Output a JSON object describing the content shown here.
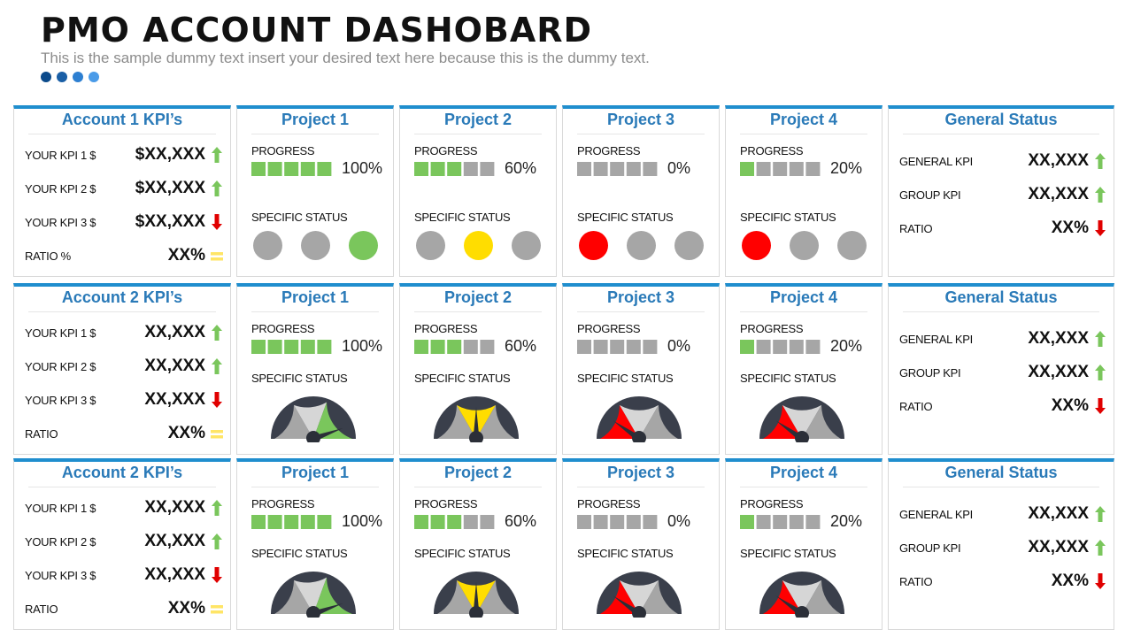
{
  "header": {
    "title": "PMO ACCOUNT DASHOBARD",
    "subtitle": "This is the sample dummy text insert your desired text here because this is the dummy text.",
    "dot_colors": [
      "#0b4a8b",
      "#1a5fa6",
      "#2d7fd1",
      "#4a9be8"
    ]
  },
  "colors": {
    "accent": "#1f8ece",
    "title": "#2a7ab8",
    "green": "#7ac65c",
    "grey": "#a6a6a6",
    "yellow": "#ffdd00",
    "red": "#ff0000",
    "arrow_up": "#7ac65c",
    "arrow_down": "#e00000",
    "equal": "#ffe566"
  },
  "rows": [
    {
      "account": {
        "title": "Account 1 KPI’s",
        "items": [
          {
            "label": "YOUR KPI 1 $",
            "value": "$XX,XXX",
            "trend": "up"
          },
          {
            "label": "YOUR KPI 2 $",
            "value": "$XX,XXX",
            "trend": "up"
          },
          {
            "label": "YOUR KPI 3 $",
            "value": "$XX,XXX",
            "trend": "down"
          },
          {
            "label": "RATIO %",
            "value": "XX%",
            "trend": "equal"
          }
        ]
      },
      "status_type": "circles",
      "projects": [
        {
          "title": "Project 1",
          "progress_label": "PROGRESS",
          "progress": 100,
          "progress_text": "100%",
          "status_label": "SPECIFIC STATUS",
          "circles": [
            "grey",
            "grey",
            "green"
          ]
        },
        {
          "title": "Project 2",
          "progress_label": "PROGRESS",
          "progress": 60,
          "progress_text": "60%",
          "status_label": "SPECIFIC STATUS",
          "circles": [
            "grey",
            "yellow",
            "grey"
          ]
        },
        {
          "title": "Project 3",
          "progress_label": "PROGRESS",
          "progress": 0,
          "progress_text": "0%",
          "status_label": "SPECIFIC STATUS",
          "circles": [
            "red",
            "grey",
            "grey"
          ]
        },
        {
          "title": "Project 4",
          "progress_label": "PROGRESS",
          "progress": 20,
          "progress_text": "20%",
          "status_label": "SPECIFIC STATUS",
          "circles": [
            "red",
            "grey",
            "grey"
          ]
        }
      ],
      "general": {
        "title": "General Status",
        "items": [
          {
            "label": "GENERAL KPI",
            "value": "XX,XXX",
            "trend": "up"
          },
          {
            "label": "GROUP KPI",
            "value": "XX,XXX",
            "trend": "up"
          },
          {
            "label": "RATIO",
            "value": "XX%",
            "trend": "down"
          }
        ]
      }
    },
    {
      "account": {
        "title": "Account 2 KPI’s",
        "items": [
          {
            "label": "YOUR KPI 1 $",
            "value": "XX,XXX",
            "trend": "up"
          },
          {
            "label": "YOUR KPI 2 $",
            "value": "XX,XXX",
            "trend": "up"
          },
          {
            "label": "YOUR KPI 3 $",
            "value": "XX,XXX",
            "trend": "down"
          },
          {
            "label": "RATIO",
            "value": "XX%",
            "trend": "equal"
          }
        ]
      },
      "status_type": "gauge",
      "projects": [
        {
          "title": "Project 1",
          "progress_label": "PROGRESS",
          "progress": 100,
          "progress_text": "100%",
          "status_label": "SPECIFIC STATUS",
          "gauge": "green"
        },
        {
          "title": "Project 2",
          "progress_label": "PROGRESS",
          "progress": 60,
          "progress_text": "60%",
          "status_label": "SPECIFIC STATUS",
          "gauge": "yellow"
        },
        {
          "title": "Project 3",
          "progress_label": "PROGRESS",
          "progress": 0,
          "progress_text": "0%",
          "status_label": "SPECIFIC STATUS",
          "gauge": "red"
        },
        {
          "title": "Project 4",
          "progress_label": "PROGRESS",
          "progress": 20,
          "progress_text": "20%",
          "status_label": "SPECIFIC STATUS",
          "gauge": "red"
        }
      ],
      "general": {
        "title": "General Status",
        "items": [
          {
            "label": "GENERAL KPI",
            "value": "XX,XXX",
            "trend": "up"
          },
          {
            "label": "GROUP KPI",
            "value": "XX,XXX",
            "trend": "up"
          },
          {
            "label": "RATIO",
            "value": "XX%",
            "trend": "down"
          }
        ]
      }
    },
    {
      "account": {
        "title": "Account 2 KPI’s",
        "items": [
          {
            "label": "YOUR KPI 1 $",
            "value": "XX,XXX",
            "trend": "up"
          },
          {
            "label": "YOUR KPI 2 $",
            "value": "XX,XXX",
            "trend": "up"
          },
          {
            "label": "YOUR KPI 3 $",
            "value": "XX,XXX",
            "trend": "down"
          },
          {
            "label": "RATIO",
            "value": "XX%",
            "trend": "equal"
          }
        ]
      },
      "status_type": "gauge",
      "projects": [
        {
          "title": "Project 1",
          "progress_label": "PROGRESS",
          "progress": 100,
          "progress_text": "100%",
          "status_label": "SPECIFIC STATUS",
          "gauge": "green"
        },
        {
          "title": "Project 2",
          "progress_label": "PROGRESS",
          "progress": 60,
          "progress_text": "60%",
          "status_label": "SPECIFIC STATUS",
          "gauge": "yellow"
        },
        {
          "title": "Project 3",
          "progress_label": "PROGRESS",
          "progress": 0,
          "progress_text": "0%",
          "status_label": "SPECIFIC STATUS",
          "gauge": "red"
        },
        {
          "title": "Project 4",
          "progress_label": "PROGRESS",
          "progress": 20,
          "progress_text": "20%",
          "status_label": "SPECIFIC STATUS",
          "gauge": "red"
        }
      ],
      "general": {
        "title": "General Status",
        "items": [
          {
            "label": "GENERAL KPI",
            "value": "XX,XXX",
            "trend": "up"
          },
          {
            "label": "GROUP KPI",
            "value": "XX,XXX",
            "trend": "up"
          },
          {
            "label": "RATIO",
            "value": "XX%",
            "trend": "down"
          }
        ]
      }
    }
  ]
}
